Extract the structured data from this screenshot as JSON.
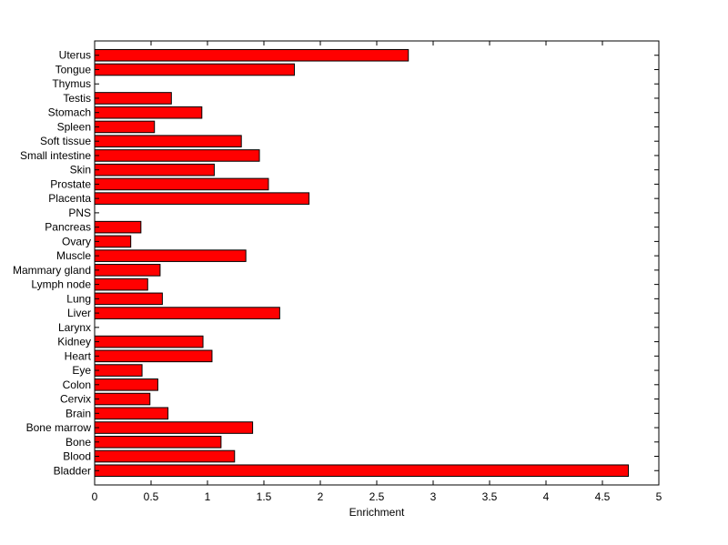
{
  "chart_data": {
    "type": "bar",
    "orientation": "horizontal",
    "categories": [
      "Bladder",
      "Blood",
      "Bone",
      "Bone marrow",
      "Brain",
      "Cervix",
      "Colon",
      "Eye",
      "Heart",
      "Kidney",
      "Larynx",
      "Liver",
      "Lung",
      "Lymph node",
      "Mammary gland",
      "Muscle",
      "Ovary",
      "Pancreas",
      "PNS",
      "Placenta",
      "Prostate",
      "Skin",
      "Small intestine",
      "Soft tissue",
      "Spleen",
      "Stomach",
      "Testis",
      "Thymus",
      "Tongue",
      "Uterus"
    ],
    "values": [
      4.73,
      1.24,
      1.12,
      1.4,
      0.65,
      0.49,
      0.56,
      0.42,
      1.04,
      0.96,
      0,
      1.64,
      0.6,
      0.47,
      0.58,
      1.34,
      0.32,
      0.41,
      0,
      1.9,
      1.54,
      1.06,
      1.46,
      1.3,
      0.53,
      0.95,
      0.68,
      0,
      1.77,
      2.78
    ],
    "title": "",
    "xlabel": "Enrichment",
    "ylabel": "",
    "xlim": [
      0,
      5
    ],
    "xticks": [
      "0",
      "0.5",
      "1",
      "1.5",
      "2",
      "2.5",
      "3",
      "3.5",
      "4",
      "4.5",
      "5"
    ],
    "bar_color": "#ff0000",
    "grid": false
  }
}
